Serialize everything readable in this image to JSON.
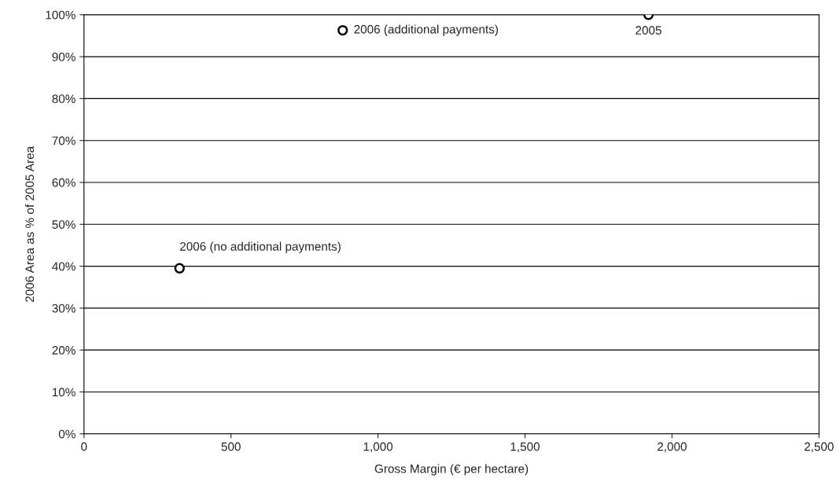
{
  "chart_data": {
    "type": "scatter",
    "xlabel": "Gross Margin (€ per hectare)",
    "ylabel": "2006 Area as % of 2005 Area",
    "x": [
      325,
      880,
      1920
    ],
    "series": [
      {
        "color": "#000000",
        "values": [
          39.5,
          96.3,
          100
        ]
      }
    ],
    "xlim": [
      0,
      2500
    ],
    "xticks": [
      0,
      500,
      {
        "value": 1000,
        "label": "1,000"
      },
      {
        "value": 1500,
        "label": "1,500"
      },
      {
        "value": 2000,
        "label": "2,000"
      },
      {
        "value": 2500,
        "label": "2,500"
      }
    ],
    "ylim": [
      0,
      100
    ],
    "yticks": [
      {
        "value": 0,
        "label": "0%"
      },
      {
        "value": 10,
        "label": "10%"
      },
      {
        "value": 20,
        "label": "20%"
      },
      {
        "value": 30,
        "label": "30%"
      },
      {
        "value": 40,
        "label": "40%"
      },
      {
        "value": 50,
        "label": "50%"
      },
      {
        "value": 60,
        "label": "60%"
      },
      {
        "value": 70,
        "label": "70%"
      },
      {
        "value": 80,
        "label": "80%"
      },
      {
        "value": 90,
        "label": "90%"
      },
      {
        "value": 100,
        "label": "100%"
      }
    ],
    "grid": "y",
    "marker": "circle",
    "annotations": [
      {
        "text": "2006 (no additional payments)",
        "x": 325,
        "y": 39.5
      },
      {
        "text": "2006 (additional payments)",
        "x": 880,
        "y": 96.3
      },
      {
        "text": "2005",
        "x": 1920,
        "y": 100
      }
    ]
  }
}
